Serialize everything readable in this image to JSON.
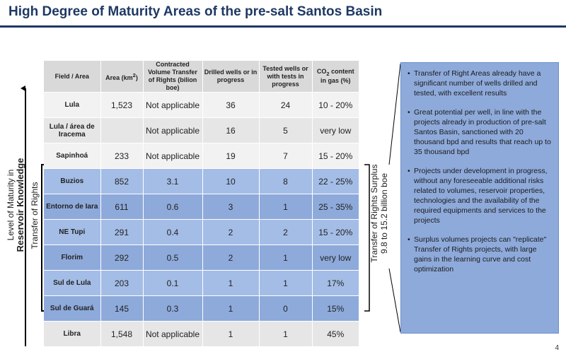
{
  "title": "High Degree of Maturity Areas of the pre-salt Santos Basin",
  "headers": [
    "Field / Area",
    "Area (km²)",
    "Contracted Volume Transfer of Rights (bilion boe)",
    "Drilled wells or in progress",
    "Tested wells or with tests in progress",
    "CO₂ content in gas (%)"
  ],
  "rows": [
    {
      "field": "Lula",
      "area": "1,523",
      "volume": "Not applicable",
      "drilled": "36",
      "tested": "24",
      "co2": "10 - 20%",
      "highlight": false
    },
    {
      "field": "Lula / área de Iracema",
      "area": "",
      "volume": "Not applicable",
      "drilled": "16",
      "tested": "5",
      "co2": "very low",
      "highlight": false
    },
    {
      "field": "Sapinhoá",
      "area": "233",
      "volume": "Not applicable",
      "drilled": "19",
      "tested": "7",
      "co2": "15 - 20%",
      "highlight": false
    },
    {
      "field": "Buzios",
      "area": "852",
      "volume": "3.1",
      "drilled": "10",
      "tested": "8",
      "co2": "22 - 25%",
      "highlight": true
    },
    {
      "field": "Entorno de Iara",
      "area": "611",
      "volume": "0.6",
      "drilled": "3",
      "tested": "1",
      "co2": "25 - 35%",
      "highlight": true
    },
    {
      "field": "NE Tupi",
      "area": "291",
      "volume": "0.4",
      "drilled": "2",
      "tested": "2",
      "co2": "15 - 20%",
      "highlight": true
    },
    {
      "field": "Florim",
      "area": "292",
      "volume": "0.5",
      "drilled": "2",
      "tested": "1",
      "co2": "very low",
      "highlight": true
    },
    {
      "field": "Sul de Lula",
      "area": "203",
      "volume": "0.1",
      "drilled": "1",
      "tested": "1",
      "co2": "17%",
      "highlight": true
    },
    {
      "field": "Sul de Guará",
      "area": "145",
      "volume": "0.3",
      "drilled": "1",
      "tested": "0",
      "co2": "15%",
      "highlight": true
    },
    {
      "field": "Libra",
      "area": "1,548",
      "volume": "Not applicable",
      "drilled": "1",
      "tested": "1",
      "co2": "45%",
      "highlight": false
    }
  ],
  "axis_label_line1": "Level of Maturity in",
  "axis_label_line2": "Reservoir Knowledge",
  "bracket_label": "Transfer of Rights",
  "surplus_line1": "Transfer of Rights Surplus",
  "surplus_line2": "9.8 to 15.2 billion boe",
  "bullets": [
    "Transfer of Right Areas already have a significant number of wells drilled and tested, with excellent results",
    "Great potential per well, in line with the projects already in production of pre-salt Santos Basin, sanctioned with 20 thousand bpd and results that reach up to 35 thousand bpd",
    "Projects under development in progress, without any foreseeable additional risks related to volumes, reservoir properties, technologies and the availability of the required equipments and services to the projects",
    "Surplus volumes projects can \"replicate\" Transfer of Rights projects, with large gains in the learning curve and cost optimization"
  ],
  "page_number": "4",
  "colors": {
    "title": "#1f3864",
    "highlight_row": "#8eaadb",
    "header": "#d9d9d9",
    "textbox": "#8eaadb"
  }
}
